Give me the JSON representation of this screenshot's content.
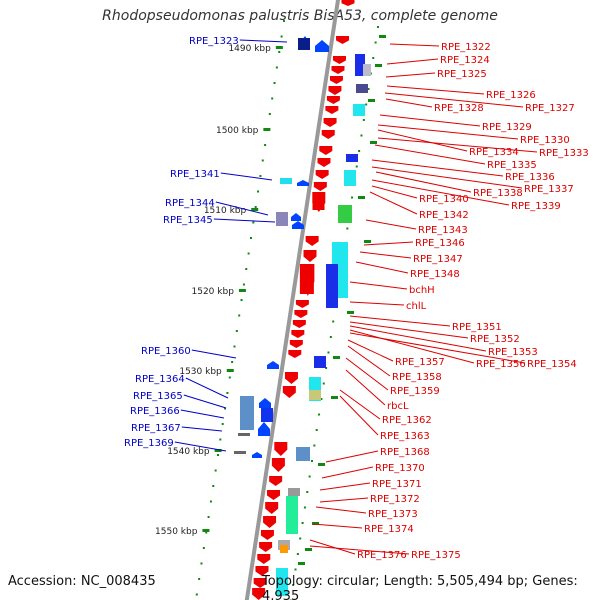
{
  "title": "Rhodopseudomonas palustris BisA53, complete genome",
  "accession": "Accession: NC_008435",
  "topology": "Topology: circular; Length: 5,505,494 bp; Genes: 4,935",
  "colors": {
    "left_label": "#0000cc",
    "right_label": "#dd0000",
    "tick": "#118811",
    "axis": "#999999"
  },
  "kbp_ticks": [
    "1490 kbp",
    "1500 kbp",
    "1510 kbp",
    "1520 kbp",
    "1530 kbp",
    "1540 kbp",
    "1550 kbp"
  ],
  "left_genes": [
    "RPE_1323",
    "RPE_1341",
    "RPE_1344",
    "RPE_1345",
    "RPE_1360",
    "RPE_1364",
    "RPE_1365",
    "RPE_1366",
    "RPE_1367",
    "RPE_1369"
  ],
  "right_genes": [
    "RPE_1322",
    "RPE_1324",
    "RPE_1325",
    "RPE_1326",
    "RPE_1327",
    "RPE_1328",
    "RPE_1329",
    "RPE_1330",
    "RPE_1334",
    "RPE_1333",
    "RPE_1335",
    "RPE_1336",
    "RPE_1338",
    "RPE_1337",
    "RPE_1340",
    "RPE_1339",
    "RPE_1342",
    "RPE_1343",
    "RPE_1346",
    "RPE_1347",
    "RPE_1348",
    "bchH",
    "chlL",
    "RPE_1351",
    "RPE_1352",
    "RPE_1353",
    "RPE_1356",
    "RPE_1354",
    "RPE_1357",
    "RPE_1358",
    "RPE_1359",
    "rbcL",
    "RPE_1362",
    "RPE_1363",
    "RPE_1368",
    "RPE_1370",
    "RPE_1371",
    "RPE_1372",
    "RPE_1373",
    "RPE_1374",
    "RPE_1376",
    "RPE_1375"
  ]
}
